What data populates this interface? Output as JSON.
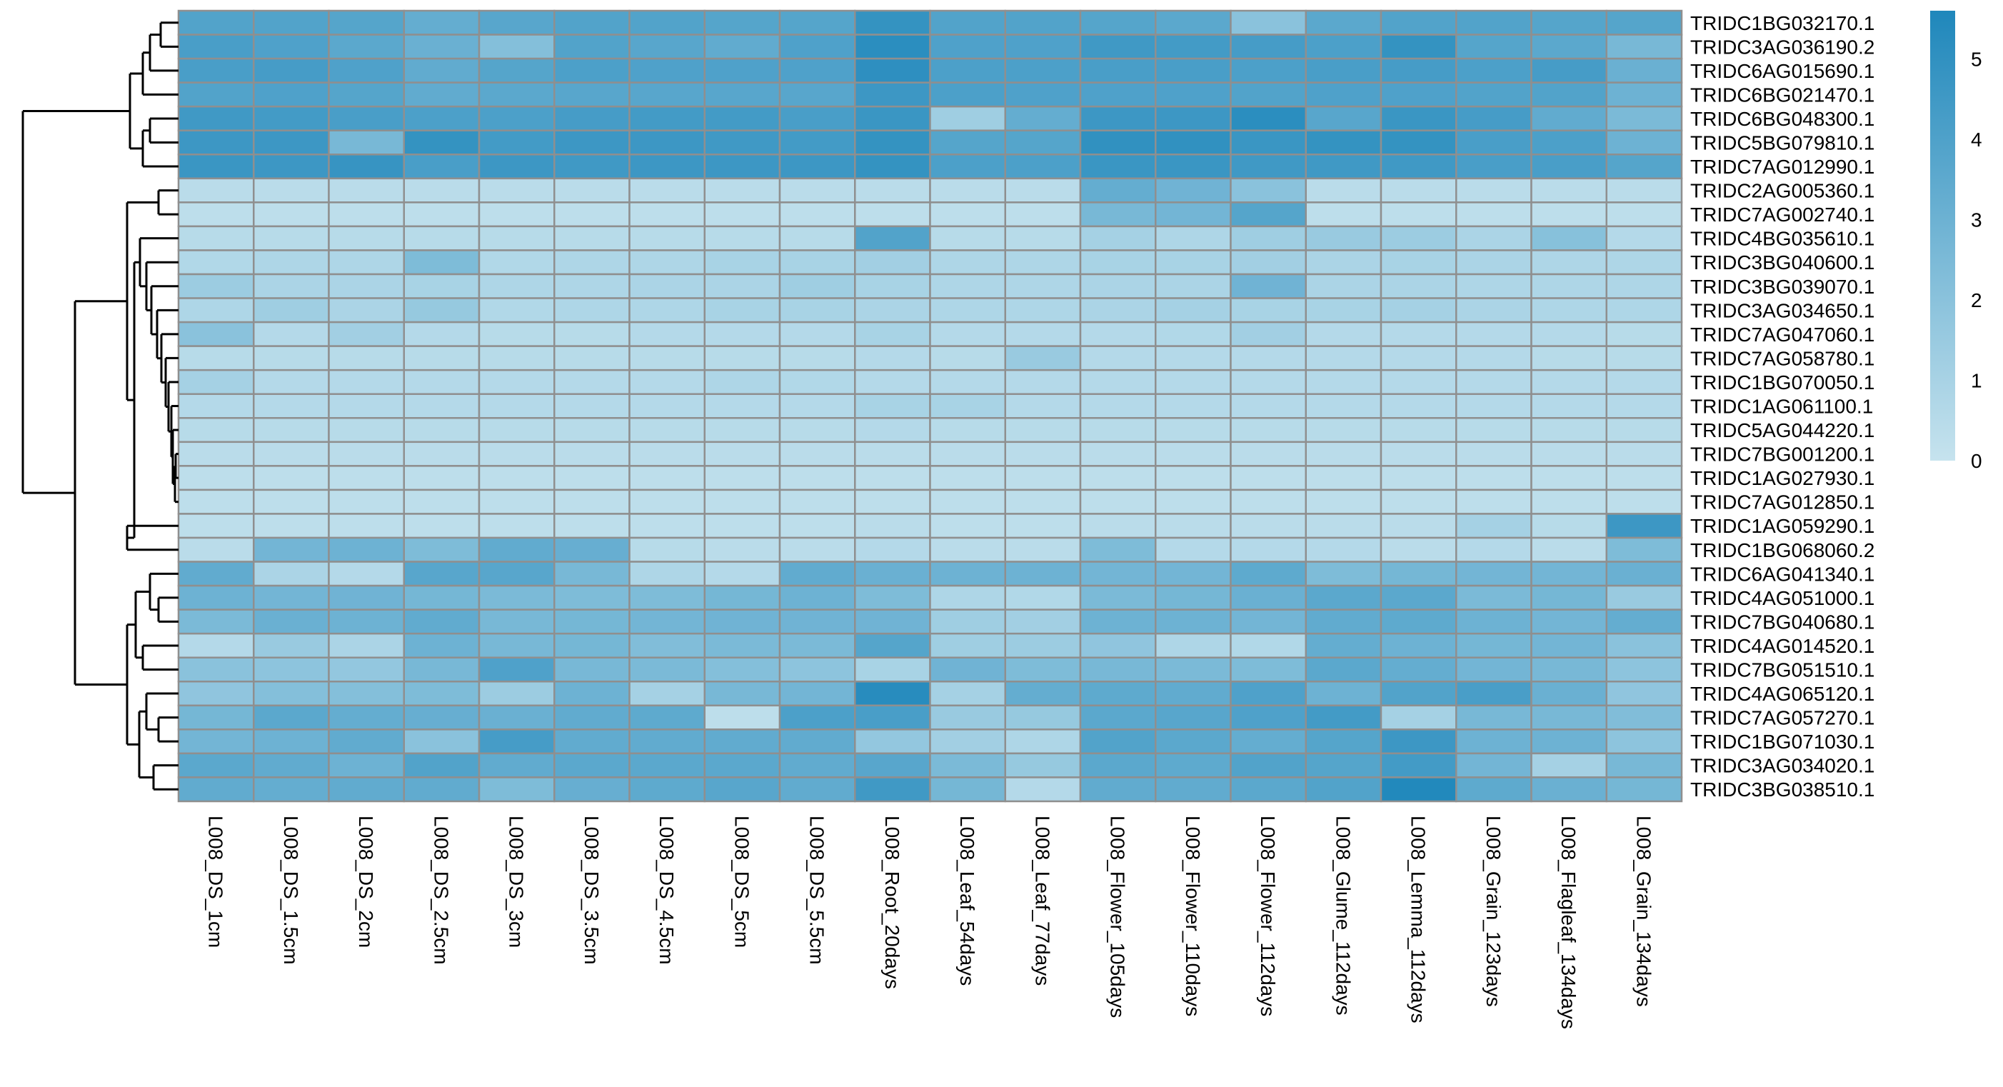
{
  "chart_data": {
    "type": "heatmap",
    "title": "",
    "xlabel": "",
    "ylabel": "",
    "color_scale": {
      "low": "#c6e3ee",
      "high": "#1f87bb",
      "min": 0,
      "max": 5.6,
      "ticks": [
        "0",
        "1",
        "2",
        "3",
        "4",
        "5"
      ]
    },
    "cell_border_color": "#8f8f8f",
    "dendrogram_color": "#000000",
    "columns": [
      "L008_DS_1cm",
      "L008_DS_1.5cm",
      "L008_DS_2cm",
      "L008_DS_2.5cm",
      "L008_DS_3cm",
      "L008_DS_3.5cm",
      "L008_DS_4.5cm",
      "L008_DS_5cm",
      "L008_DS_5.5cm",
      "L008_Root_20days",
      "L008_Leaf_54days",
      "L008_Leaf_77days",
      "L008_Flower_105days",
      "L008_Flower_110days",
      "L008_Flower_112days",
      "L008_Glume_112days",
      "L008_Lemma_112days",
      "L008_Grain_123days",
      "L008_Flagleaf_134days",
      "L008_Grain_134days"
    ],
    "rows": [
      "TRIDC1BG032170.1",
      "TRIDC3AG036190.2",
      "TRIDC6AG015690.1",
      "TRIDC6BG021470.1",
      "TRIDC6BG048300.1",
      "TRIDC5BG079810.1",
      "TRIDC7AG012990.1",
      "TRIDC2AG005360.1",
      "TRIDC7AG002740.1",
      "TRIDC4BG035610.1",
      "TRIDC3BG040600.1",
      "TRIDC3BG039070.1",
      "TRIDC3AG034650.1",
      "TRIDC7AG047060.1",
      "TRIDC7AG058780.1",
      "TRIDC1BG070050.1",
      "TRIDC1AG061100.1",
      "TRIDC5AG044220.1",
      "TRIDC7BG001200.1",
      "TRIDC1AG027930.1",
      "TRIDC7AG012850.1",
      "TRIDC1AG059290.1",
      "TRIDC1BG068060.2",
      "TRIDC6AG041340.1",
      "TRIDC4AG051000.1",
      "TRIDC7BG040680.1",
      "TRIDC4AG014520.1",
      "TRIDC7BG051510.1",
      "TRIDC4AG065120.1",
      "TRIDC7AG057270.1",
      "TRIDC1BG071030.1",
      "TRIDC3AG034020.1",
      "TRIDC3BG038510.1"
    ],
    "values": [
      [
        3.9,
        3.9,
        3.8,
        3.3,
        3.7,
        3.9,
        3.9,
        3.8,
        3.8,
        4.9,
        3.9,
        3.9,
        3.8,
        3.6,
        2.0,
        3.6,
        3.9,
        3.9,
        3.8,
        3.8
      ],
      [
        4.2,
        4.0,
        3.6,
        3.1,
        2.2,
        3.9,
        3.7,
        3.4,
        4.0,
        5.2,
        4.0,
        4.0,
        4.5,
        4.4,
        4.3,
        4.1,
        4.9,
        3.8,
        3.6,
        2.6
      ],
      [
        4.2,
        4.3,
        4.0,
        3.4,
        3.8,
        4.1,
        4.0,
        4.0,
        4.0,
        5.1,
        4.1,
        4.1,
        4.2,
        4.2,
        4.1,
        4.2,
        4.3,
        4.1,
        4.3,
        3.1
      ],
      [
        3.9,
        4.0,
        3.8,
        3.4,
        3.6,
        3.7,
        3.7,
        3.7,
        3.7,
        4.6,
        4.1,
        4.0,
        4.0,
        4.0,
        3.9,
        4.0,
        4.0,
        3.9,
        3.9,
        3.0
      ],
      [
        4.5,
        4.4,
        4.2,
        4.1,
        4.1,
        4.3,
        4.4,
        4.4,
        4.2,
        4.7,
        1.3,
        3.3,
        4.6,
        4.6,
        5.2,
        3.7,
        4.7,
        4.3,
        3.4,
        2.5
      ],
      [
        4.6,
        4.6,
        2.6,
        4.9,
        4.4,
        4.6,
        4.6,
        4.5,
        4.4,
        4.9,
        3.8,
        3.8,
        5.0,
        5.0,
        4.7,
        4.9,
        4.9,
        4.2,
        4.1,
        3.0
      ],
      [
        4.7,
        4.6,
        4.8,
        4.2,
        4.6,
        4.5,
        4.6,
        4.6,
        4.6,
        4.9,
        4.1,
        4.1,
        4.7,
        4.7,
        4.5,
        4.5,
        4.5,
        4.2,
        4.2,
        3.8
      ],
      [
        0.4,
        0.4,
        0.4,
        0.4,
        0.4,
        0.4,
        0.4,
        0.4,
        0.4,
        0.4,
        0.4,
        0.4,
        3.3,
        2.9,
        2.0,
        0.4,
        0.4,
        0.4,
        0.4,
        0.4
      ],
      [
        0.3,
        0.3,
        0.3,
        0.3,
        0.3,
        0.3,
        0.3,
        0.3,
        0.3,
        0.3,
        0.3,
        0.3,
        2.6,
        2.8,
        3.8,
        0.3,
        0.3,
        0.3,
        0.3,
        0.3
      ],
      [
        0.5,
        0.5,
        0.5,
        0.5,
        0.5,
        0.5,
        0.5,
        0.5,
        0.5,
        3.9,
        0.5,
        0.5,
        1.1,
        0.8,
        1.3,
        1.5,
        1.4,
        0.9,
        2.1,
        0.6
      ],
      [
        0.7,
        0.8,
        0.8,
        2.4,
        0.7,
        0.8,
        0.8,
        1.0,
        1.0,
        1.2,
        0.8,
        0.8,
        1.0,
        1.0,
        1.2,
        0.9,
        1.0,
        0.9,
        0.8,
        0.8
      ],
      [
        1.4,
        0.9,
        0.9,
        1.0,
        0.8,
        0.8,
        0.9,
        0.9,
        1.3,
        1.0,
        0.8,
        0.8,
        0.9,
        0.9,
        2.9,
        0.9,
        0.9,
        0.8,
        0.8,
        0.8
      ],
      [
        0.8,
        1.3,
        0.9,
        1.6,
        0.7,
        0.8,
        0.8,
        1.0,
        1.0,
        0.9,
        0.8,
        0.8,
        0.9,
        1.1,
        1.0,
        1.0,
        1.1,
        0.9,
        0.8,
        0.8
      ],
      [
        2.0,
        0.6,
        1.2,
        0.6,
        0.5,
        0.5,
        0.6,
        0.6,
        0.6,
        1.0,
        0.6,
        0.6,
        0.6,
        0.7,
        1.2,
        0.6,
        0.6,
        0.6,
        0.6,
        0.5
      ],
      [
        0.5,
        0.5,
        0.5,
        0.5,
        0.5,
        0.5,
        0.5,
        0.5,
        0.5,
        0.6,
        0.5,
        1.5,
        0.6,
        0.6,
        0.6,
        0.6,
        0.6,
        0.6,
        0.5,
        0.5
      ],
      [
        1.1,
        0.6,
        0.6,
        0.6,
        0.6,
        0.6,
        0.6,
        0.8,
        0.7,
        0.6,
        0.6,
        0.6,
        0.6,
        0.6,
        0.6,
        0.6,
        0.6,
        0.6,
        0.6,
        0.6
      ],
      [
        0.6,
        0.6,
        0.6,
        0.6,
        0.6,
        0.6,
        0.6,
        0.6,
        0.6,
        1.0,
        1.0,
        0.6,
        0.6,
        0.6,
        0.6,
        0.6,
        0.6,
        0.6,
        0.6,
        0.6
      ],
      [
        0.5,
        0.5,
        0.5,
        0.5,
        0.5,
        0.5,
        0.5,
        0.5,
        0.5,
        0.6,
        0.5,
        0.5,
        0.5,
        0.5,
        0.5,
        0.5,
        0.5,
        0.5,
        0.5,
        0.5
      ],
      [
        0.4,
        0.4,
        0.4,
        0.4,
        0.4,
        0.4,
        0.4,
        0.4,
        0.4,
        0.4,
        0.4,
        0.4,
        0.4,
        0.4,
        0.4,
        0.4,
        0.4,
        0.4,
        0.4,
        0.4
      ],
      [
        0.3,
        0.3,
        0.3,
        0.3,
        0.3,
        0.3,
        0.3,
        0.3,
        0.3,
        0.3,
        0.3,
        0.3,
        0.3,
        0.3,
        0.3,
        0.3,
        0.3,
        0.3,
        0.3,
        0.3
      ],
      [
        0.3,
        0.3,
        0.3,
        0.3,
        0.3,
        0.3,
        0.3,
        0.3,
        0.3,
        0.3,
        0.3,
        0.3,
        0.3,
        0.3,
        0.3,
        0.3,
        0.3,
        0.3,
        0.3,
        0.3
      ],
      [
        0.3,
        0.3,
        0.3,
        0.3,
        0.3,
        0.3,
        0.3,
        0.3,
        0.3,
        0.4,
        0.3,
        0.3,
        0.4,
        0.4,
        0.4,
        0.4,
        0.4,
        1.1,
        0.5,
        4.6
      ],
      [
        0.4,
        2.8,
        3.0,
        2.4,
        3.4,
        3.2,
        0.5,
        0.4,
        0.4,
        0.6,
        0.4,
        0.4,
        2.4,
        0.6,
        0.6,
        0.6,
        0.4,
        0.6,
        0.4,
        2.4
      ],
      [
        3.4,
        0.9,
        0.6,
        3.7,
        3.7,
        2.6,
        0.8,
        0.6,
        3.4,
        3.1,
        3.0,
        3.0,
        2.8,
        2.8,
        3.5,
        2.4,
        2.7,
        2.8,
        2.8,
        3.1
      ],
      [
        3.0,
        2.8,
        2.9,
        2.7,
        2.5,
        2.4,
        2.4,
        2.7,
        3.0,
        2.4,
        0.8,
        0.7,
        2.5,
        2.7,
        3.1,
        3.6,
        3.6,
        2.5,
        2.7,
        1.5
      ],
      [
        2.5,
        3.1,
        3.0,
        3.4,
        2.6,
        2.7,
        2.8,
        2.9,
        2.9,
        2.9,
        1.3,
        1.2,
        3.0,
        3.0,
        2.8,
        3.4,
        3.5,
        3.0,
        2.8,
        3.3
      ],
      [
        0.6,
        1.5,
        0.9,
        3.0,
        2.6,
        2.7,
        2.3,
        2.5,
        2.5,
        3.8,
        1.3,
        1.4,
        1.8,
        0.8,
        0.7,
        3.3,
        3.0,
        2.7,
        2.8,
        2.0
      ],
      [
        2.0,
        1.9,
        1.7,
        2.6,
        4.0,
        2.6,
        2.5,
        2.2,
        1.9,
        1.0,
        2.9,
        2.4,
        2.6,
        2.5,
        2.4,
        3.6,
        3.3,
        2.8,
        2.6,
        1.9
      ],
      [
        1.8,
        2.2,
        2.2,
        2.4,
        1.4,
        3.0,
        1.1,
        2.6,
        2.8,
        5.3,
        1.1,
        3.3,
        3.5,
        3.4,
        4.0,
        3.0,
        3.9,
        4.2,
        3.1,
        1.8
      ],
      [
        2.7,
        3.6,
        3.3,
        3.2,
        3.1,
        3.4,
        3.5,
        0.3,
        4.1,
        4.2,
        1.5,
        1.6,
        3.6,
        3.7,
        4.0,
        4.4,
        1.1,
        2.6,
        2.6,
        2.3
      ],
      [
        2.8,
        3.0,
        3.4,
        2.0,
        4.3,
        3.4,
        3.4,
        3.4,
        3.4,
        1.7,
        1.2,
        0.8,
        3.9,
        3.6,
        3.3,
        3.8,
        4.6,
        3.0,
        3.0,
        1.9
      ],
      [
        3.6,
        3.4,
        3.0,
        3.9,
        3.4,
        3.6,
        3.6,
        3.6,
        3.4,
        3.7,
        2.5,
        1.6,
        3.6,
        3.5,
        3.9,
        3.8,
        4.4,
        2.8,
        1.1,
        2.6
      ],
      [
        3.4,
        3.3,
        3.4,
        3.4,
        2.4,
        3.2,
        3.5,
        3.7,
        3.4,
        4.5,
        2.7,
        0.6,
        3.4,
        3.4,
        3.6,
        3.9,
        5.5,
        3.5,
        3.1,
        2.7
      ]
    ]
  }
}
